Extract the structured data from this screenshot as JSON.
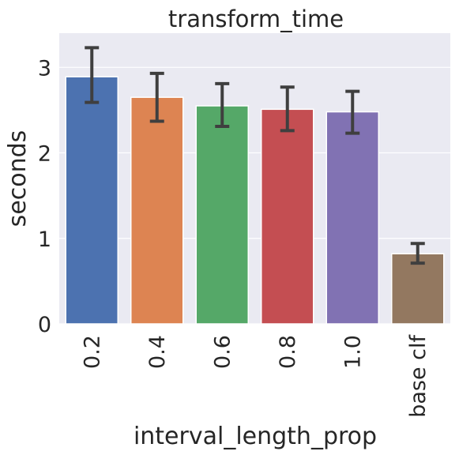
{
  "chart_data": {
    "type": "bar",
    "title": "transform_time",
    "xlabel": "interval_length_prop",
    "ylabel": "seconds",
    "categories": [
      "0.2",
      "0.4",
      "0.6",
      "0.8",
      "1.0",
      "base clf"
    ],
    "values": [
      2.89,
      2.65,
      2.55,
      2.51,
      2.48,
      0.82
    ],
    "error_low": [
      2.59,
      2.37,
      2.31,
      2.26,
      2.23,
      0.71
    ],
    "error_high": [
      3.23,
      2.93,
      2.81,
      2.77,
      2.72,
      0.94
    ],
    "colors": [
      "#4c72b0",
      "#dd8452",
      "#55a868",
      "#c44e52",
      "#8172b3",
      "#937860"
    ],
    "yticks": [
      0,
      1,
      2,
      3
    ],
    "ylim": [
      0,
      3.4
    ],
    "grid": true
  }
}
